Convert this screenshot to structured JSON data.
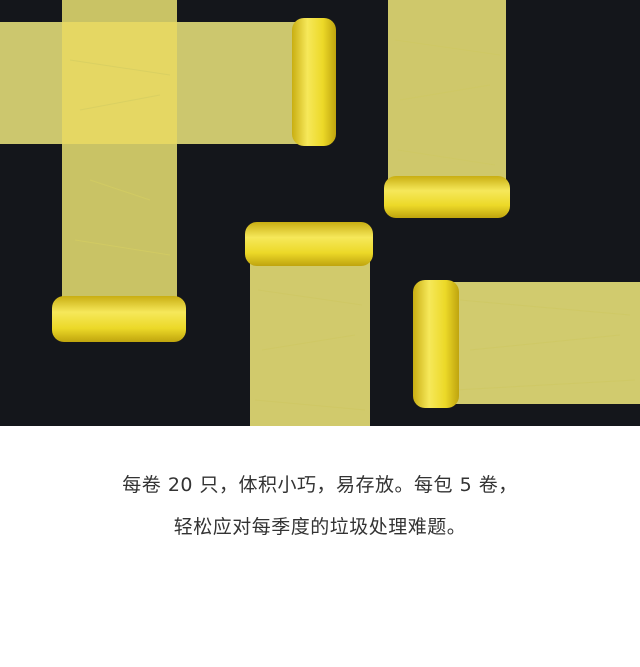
{
  "photo": {
    "background": "#14161b",
    "sheet_color": "#e6e07a",
    "roll_color": "#ecd928",
    "roll_highlight": "#f6e85a",
    "roll_shadow": "#c9ae12"
  },
  "caption": {
    "line1": "每卷 20 只，体积小巧，易存放。每包 5 卷，",
    "line2": "轻松应对每季度的垃圾处理难题。"
  }
}
